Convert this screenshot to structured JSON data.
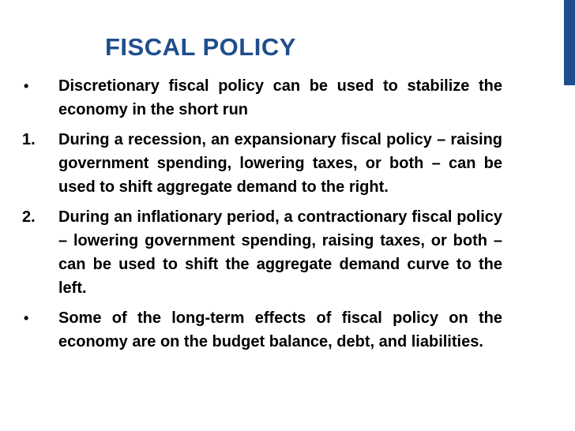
{
  "title": "FISCAL POLICY",
  "accent_color": "#1f4e8c",
  "items": [
    {
      "marker": "•",
      "text": "Discretionary fiscal policy can be used to stabilize the economy in the short run"
    },
    {
      "marker": "1.",
      "text": "During a recession, an expansionary fiscal policy – raising government spending, lowering taxes, or both – can be used to shift aggregate demand to the right."
    },
    {
      "marker": "2.",
      "text": "During an inflationary period, a contractionary fiscal policy – lowering government spending, raising taxes, or both – can be used to shift the aggregate demand curve to the left."
    },
    {
      "marker": "•",
      "text": "Some of the long-term effects of fiscal policy on the economy are on the budget balance, debt, and liabilities."
    }
  ]
}
